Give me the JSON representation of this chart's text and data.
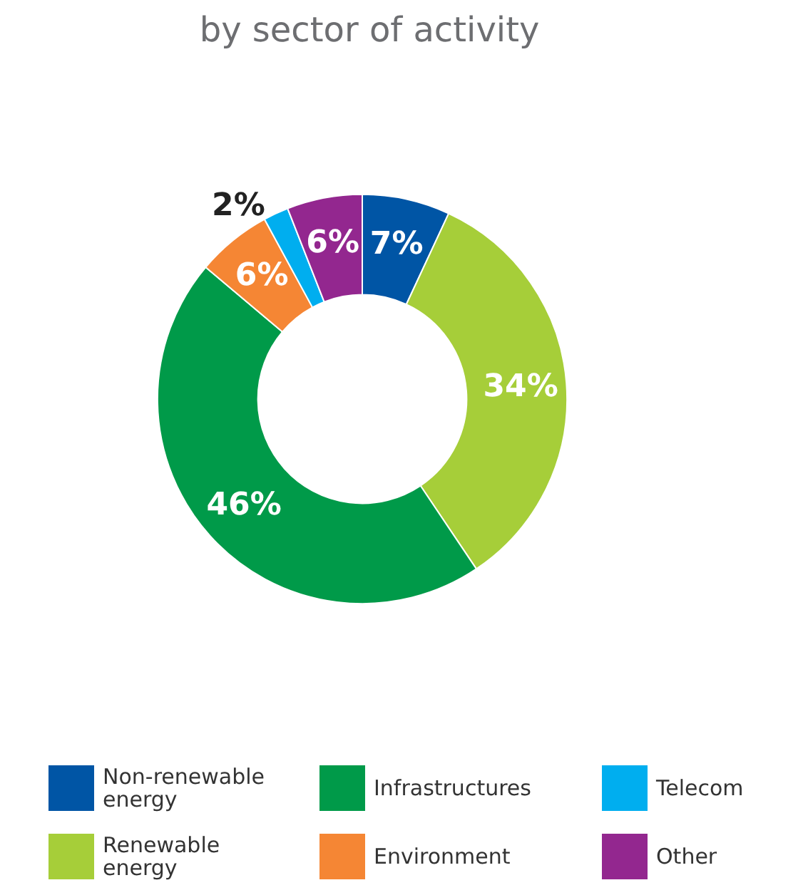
{
  "chart_data": {
    "type": "donut",
    "title": "by sector of activity",
    "categories": [
      "Non-renewable energy",
      "Renewable energy",
      "Infrastructures",
      "Environment",
      "Telecom",
      "Other"
    ],
    "values": [
      7,
      34,
      46,
      6,
      2,
      6
    ],
    "value_labels": [
      "7%",
      "34%",
      "46%",
      "6%",
      "2%",
      "6%"
    ],
    "colors": [
      "#0055a5",
      "#a6ce39",
      "#009a49",
      "#f58634",
      "#00aeef",
      "#93278f"
    ],
    "legend": "bottom"
  }
}
